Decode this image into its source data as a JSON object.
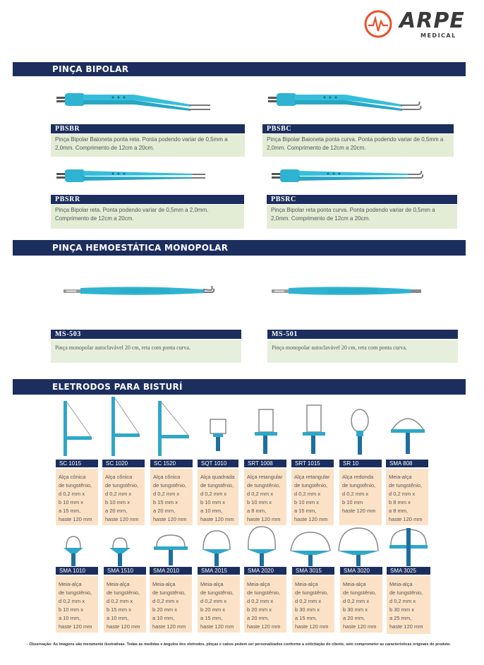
{
  "brand": {
    "name": "ARPE",
    "sub": "MEDICAL"
  },
  "sections": {
    "bipolar": "PINÇA BIPOLAR",
    "monopolar": "PINÇA HEMOESTÁTICA MONOPOLAR",
    "eletrodos": "ELETRODOS PARA BISTURÍ"
  },
  "bipolar_products": [
    {
      "code": "PBSBR",
      "text": "Pinça Bipolar Baioneta ponta reta. Ponta podendo variar de 0,5mm a 2,0mm. Comprimento de 12cm a 20cm."
    },
    {
      "code": "PBSBC",
      "text": "Pinça Bipolar Baioneta ponta curva. Ponta podendo variar de 0,5mm a 2,0mm. Comprimento de 12cm a 20cm."
    },
    {
      "code": "PBSRR",
      "text": "Pinça Bipolar reta. Ponta podendo variar de 0,5mm a 2,0mm. Comprimento de 12cm a 20cm."
    },
    {
      "code": "PBSRC",
      "text": "Pinça Bipolar reta ponta curva. Ponta podendo variar de 0,5mm a 2,0mm. Comprimento de 12cm a 20cm."
    }
  ],
  "monopolar_products": [
    {
      "code": "MS-503",
      "text": "Pinça monopolar autoclavável 20 cm, reta com ponta curva."
    },
    {
      "code": "MS-501",
      "text": "Pinça monopolar autoclavável 20 cm, reta com ponta curva."
    }
  ],
  "electrodes_row1": [
    {
      "code": "SC 1015",
      "spec": "Alça cônica\nde tungstênio,\nd 0,2 mm x\nb 10 mm x\na 15 mm,\nhaste 120 mm"
    },
    {
      "code": "SC 1020",
      "spec": "Alça cônica\nde tungstênio,\nd 0,2 mm x\nb 10 mm x\na 20 mm,\nhaste 120 mm"
    },
    {
      "code": "SC 1520",
      "spec": "Alça cônica\nde tungstênio,\nd 0,2 mm x\nb 15 mm x\na 20 mm,\nhaste 120 mm"
    },
    {
      "code": "SQT 1010",
      "spec": "Alça quadrada\nde tungstênio,\nd 0,2 mm x\nb 10 mm x\na 10 mm,\nhaste 120 mm"
    },
    {
      "code": "SRT 1008",
      "spec": "Alça retangular\nde tungstênio,\nd 0,2 mm x\nb 10 mm x\na 8 mm,\nhaste 120 mm"
    },
    {
      "code": "SRT 1015",
      "spec": "Alça retangular\nde tungstênio,\nd 0,2 mm x\nb 10 mm x\na 15 mm,\nhaste 120 mm"
    },
    {
      "code": "SR 10",
      "spec": "Alça redonda\nde tungstênio,\nd 0,2 mm x\nb 10 mm\nhaste 120 mm"
    },
    {
      "code": "SMA 808",
      "spec": "Meia-alça\nde tungstênio,\nd 0,2 mm x\nb 8 mm x\na 8 mm,\nhaste 120 mm"
    }
  ],
  "electrodes_row2": [
    {
      "code": "SMA 1010",
      "spec": "Meia-alça\nde tungstênio,\nd 0,2 mm x\nb 10 mm x\na 10 mm,\nhaste 120 mm"
    },
    {
      "code": "SMA 1510",
      "spec": "Meia-alça\nde tungstênio,\nd 0,2 mm x\nb 15 mm x\na 10 mm,\nhaste 120 mm"
    },
    {
      "code": "SMA 2010",
      "spec": "Meia-alça\nde tungstênio,\nd 0,2 mm x\nb 20 mm x\na 10 mm,\nhaste 120 mm"
    },
    {
      "code": "SMA 2015",
      "spec": "Meia-alça\nde tungstênio,\nd 0,2 mm x\nb 20 mm x\na 15 mm,\nhaste 120 mm"
    },
    {
      "code": "SMA 2020",
      "spec": "Meia-alça\nde tungstênio,\nd 0,2 mm x\nb 20 mm x\na 20 mm,\nhaste 120 mm"
    },
    {
      "code": "SMA 3015",
      "spec": "Meia-alça\nde tungstênio,\nd 0,2 mm x\nb 30 mm x\na 15 mm,\nhaste 120 mm"
    },
    {
      "code": "SMA 3020",
      "spec": "Meia-alça\nde tungstênio,\nd 0,2 mm x\nb 30 mm x\na 20 mm,\nhaste 120 mm"
    },
    {
      "code": "SMA 3025",
      "spec": "Meia-alça\nde tungstênio,\nd 0,2 mm x\nb 30 mm x\na 25 mm,\nhaste 120 mm"
    }
  ],
  "footnote": "- Observação: As imagens são meramente ilustrativas. Todas as medidas e ângulos dos eletrodos, pinças e cabos podem ser personalizados conforme a solicitação do cliente, sem comprometer as características originais do produto.",
  "colors": {
    "navy": "#1c2e5e",
    "instrument": "#2fb3d1",
    "desc_green": "#e3edd6",
    "spec_peach": "#fbe2c6",
    "logo_orange": "#e8502a"
  }
}
